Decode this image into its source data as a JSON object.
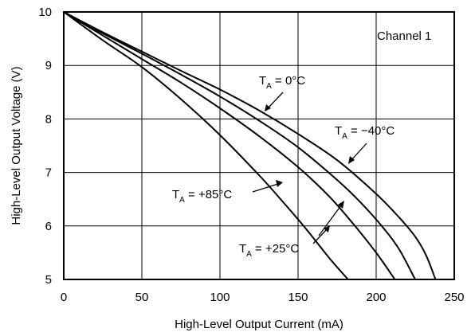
{
  "chart_data": {
    "type": "line",
    "title": "",
    "xlabel": "High-Level Output Current (mA)",
    "ylabel": "High-Level Output Voltage (V)",
    "xlim": [
      0,
      250
    ],
    "ylim": [
      5,
      10
    ],
    "xticks": [
      0,
      50,
      100,
      150,
      200,
      250
    ],
    "yticks": [
      5,
      6,
      7,
      8,
      9,
      10
    ],
    "grid": true,
    "box_label": "Channel 1",
    "series": [
      {
        "name": "T_A = −40°C",
        "x": [
          0,
          25,
          50,
          75,
          100,
          125,
          150,
          175,
          200,
          215,
          225,
          232,
          238
        ],
        "y": [
          10,
          9.62,
          9.26,
          8.9,
          8.55,
          8.16,
          7.72,
          7.23,
          6.6,
          6.15,
          5.8,
          5.45,
          5.0
        ]
      },
      {
        "name": "T_A = 0°C",
        "x": [
          0,
          25,
          50,
          75,
          100,
          125,
          150,
          175,
          190,
          205,
          215,
          225
        ],
        "y": [
          10,
          9.6,
          9.22,
          8.83,
          8.42,
          7.97,
          7.47,
          6.86,
          6.44,
          5.95,
          5.55,
          5.0
        ]
      },
      {
        "name": "T_A = +25°C",
        "x": [
          0,
          25,
          50,
          75,
          100,
          125,
          150,
          170,
          185,
          200,
          212
        ],
        "y": [
          10,
          9.56,
          9.12,
          8.68,
          8.2,
          7.68,
          7.1,
          6.55,
          6.05,
          5.5,
          5.0
        ]
      },
      {
        "name": "T_A = +85°C",
        "x": [
          0,
          25,
          50,
          75,
          100,
          125,
          140,
          155,
          170,
          182
        ],
        "y": [
          10,
          9.47,
          8.97,
          8.37,
          7.7,
          6.95,
          6.46,
          5.95,
          5.4,
          5.0
        ]
      }
    ],
    "annotations": [
      {
        "main": "T",
        "sub": "A",
        "rest": " = 0°C"
      },
      {
        "main": "T",
        "sub": "A",
        "rest": " = −40°C"
      },
      {
        "main": "T",
        "sub": "A",
        "rest": " = +85°C"
      },
      {
        "main": "T",
        "sub": "A",
        "rest": " = +25°C"
      }
    ]
  }
}
